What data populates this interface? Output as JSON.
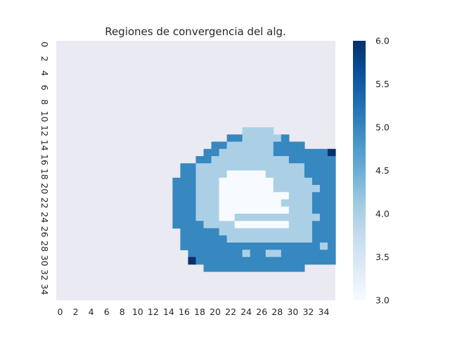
{
  "chart_data": {
    "type": "heatmap",
    "title": "Regiones de convergencia del alg.",
    "xlabel": "",
    "ylabel": "",
    "rows": 36,
    "cols": 36,
    "x_tick_labels": [
      "0",
      "2",
      "4",
      "6",
      "8",
      "10",
      "12",
      "14",
      "16",
      "18",
      "20",
      "22",
      "24",
      "26",
      "28",
      "30",
      "32",
      "34"
    ],
    "y_tick_labels": [
      "0",
      "2",
      "4",
      "6",
      "8",
      "10",
      "12",
      "14",
      "16",
      "18",
      "20",
      "22",
      "24",
      "26",
      "28",
      "30",
      "32",
      "34"
    ],
    "colorbar": {
      "min": 3.0,
      "max": 6.0,
      "tick_values": [
        3.0,
        3.5,
        4.0,
        4.5,
        5.0,
        5.5,
        6.0
      ],
      "tick_labels": [
        "3.0",
        "3.5",
        "4.0",
        "4.5",
        "5.0",
        "5.5",
        "6.0"
      ],
      "colormap": "Blues",
      "colors": [
        "#f7fbff",
        "#deebf7",
        "#c6dbef",
        "#9ecae1",
        "#6baed6",
        "#4292c6",
        "#2171b5",
        "#08519c",
        "#08306b"
      ]
    },
    "nan_color": "#eaeaf2",
    "grid_rows": [
      "....................................",
      "....................................",
      "....................................",
      "....................................",
      "....................................",
      "....................................",
      "....................................",
      "....................................",
      "....................................",
      "....................................",
      "....................................",
      "....................................",
      "........................4444........",
      "......................55444445......",
      "....................554444445555....",
      "...................55444444455555556",
      "..................554444444444555555",
      "................55444444444444445555",
      "................55444433333444445555",
      "...............555444333333344444555",
      "...............555444333333344444455",
      "...............555444333333333444555",
      "...............555444333333334444555",
      "...............555444333333333444555",
      "...............555444334444444444455",
      "...............5555444433333334445555",
      "................555554444444444445555",
      "................5555554444444444455555",
      "................55555555555555555545555",
      ".................55555554554455555555.",
      ".................6555555555555555555..",
      "...................5555555555555.....",
      "....................................",
      "....................................",
      "....................................",
      "...................................."
    ]
  }
}
